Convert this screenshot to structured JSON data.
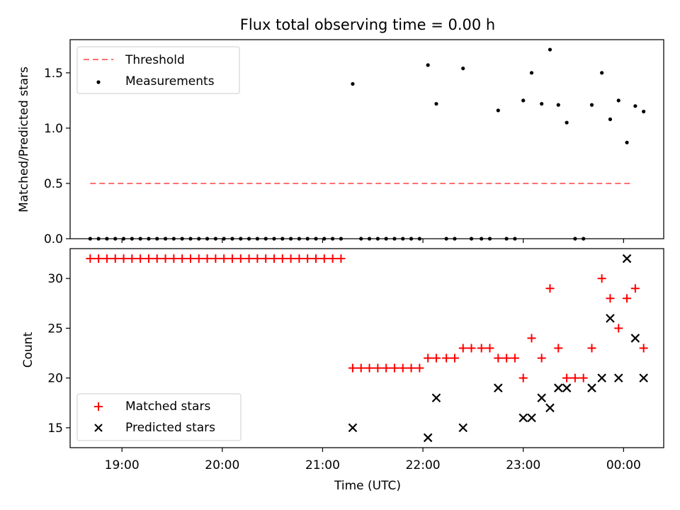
{
  "chart_data": [
    {
      "type": "scatter",
      "title": "Flux total observing time = 0.00 h",
      "xlabel": "",
      "ylabel": "Matched/Predicted stars",
      "ylim": [
        0,
        1.8
      ],
      "yticks": [
        "0.0",
        "0.5",
        "1.0",
        "1.5"
      ],
      "grid": false,
      "legend": "top-left",
      "threshold": {
        "name": "Threshold",
        "value": 0.5,
        "x_start": "18:41",
        "x_end": "00:05",
        "color": "#ff7070",
        "style": "dashed"
      },
      "series": [
        {
          "name": "Measurements",
          "color": "#000000",
          "marker": "dot",
          "points": [
            [
              "18:41",
              0.0
            ],
            [
              "18:46",
              0.0
            ],
            [
              "18:51",
              0.0
            ],
            [
              "18:56",
              0.0
            ],
            [
              "19:01",
              0.0
            ],
            [
              "19:06",
              0.0
            ],
            [
              "19:11",
              0.0
            ],
            [
              "19:16",
              0.0
            ],
            [
              "19:21",
              0.0
            ],
            [
              "19:26",
              0.0
            ],
            [
              "19:31",
              0.0
            ],
            [
              "19:36",
              0.0
            ],
            [
              "19:41",
              0.0
            ],
            [
              "19:46",
              0.0
            ],
            [
              "19:51",
              0.0
            ],
            [
              "19:56",
              0.0
            ],
            [
              "20:01",
              0.0
            ],
            [
              "20:06",
              0.0
            ],
            [
              "20:11",
              0.0
            ],
            [
              "20:16",
              0.0
            ],
            [
              "20:21",
              0.0
            ],
            [
              "20:26",
              0.0
            ],
            [
              "20:31",
              0.0
            ],
            [
              "20:36",
              0.0
            ],
            [
              "20:41",
              0.0
            ],
            [
              "20:46",
              0.0
            ],
            [
              "20:51",
              0.0
            ],
            [
              "20:56",
              0.0
            ],
            [
              "21:01",
              0.0
            ],
            [
              "21:06",
              0.0
            ],
            [
              "21:11",
              0.0
            ],
            [
              "21:18",
              1.4
            ],
            [
              "21:23",
              0.0
            ],
            [
              "21:28",
              0.0
            ],
            [
              "21:33",
              0.0
            ],
            [
              "21:38",
              0.0
            ],
            [
              "21:43",
              0.0
            ],
            [
              "21:48",
              0.0
            ],
            [
              "21:53",
              0.0
            ],
            [
              "21:58",
              0.0
            ],
            [
              "22:03",
              1.57
            ],
            [
              "22:08",
              1.22
            ],
            [
              "22:14",
              0.0
            ],
            [
              "22:19",
              0.0
            ],
            [
              "22:24",
              1.54
            ],
            [
              "22:29",
              0.0
            ],
            [
              "22:35",
              0.0
            ],
            [
              "22:40",
              0.0
            ],
            [
              "22:45",
              1.16
            ],
            [
              "22:50",
              0.0
            ],
            [
              "22:55",
              0.0
            ],
            [
              "23:00",
              1.25
            ],
            [
              "23:05",
              1.5
            ],
            [
              "23:11",
              1.22
            ],
            [
              "23:16",
              1.71
            ],
            [
              "23:21",
              1.21
            ],
            [
              "23:26",
              1.05
            ],
            [
              "23:31",
              0.0
            ],
            [
              "23:36",
              0.0
            ],
            [
              "23:41",
              1.21
            ],
            [
              "23:47",
              1.5
            ],
            [
              "23:52",
              1.08
            ],
            [
              "23:57",
              1.25
            ],
            [
              "00:02",
              0.87
            ],
            [
              "00:07",
              1.2
            ],
            [
              "00:12",
              1.15
            ]
          ]
        }
      ]
    },
    {
      "type": "scatter",
      "title": "",
      "xlabel": "Time (UTC)",
      "ylabel": "Count",
      "ylim": [
        13.0,
        33.0
      ],
      "yticks": [
        "15",
        "20",
        "25",
        "30"
      ],
      "xticks": [
        "19:00",
        "20:00",
        "21:00",
        "22:00",
        "23:00",
        "00:00"
      ],
      "grid": false,
      "legend": "bottom-left",
      "series": [
        {
          "name": "Matched stars",
          "color": "#ff0000",
          "marker": "plus",
          "points": [
            [
              "18:41",
              32
            ],
            [
              "18:46",
              32
            ],
            [
              "18:51",
              32
            ],
            [
              "18:56",
              32
            ],
            [
              "19:01",
              32
            ],
            [
              "19:06",
              32
            ],
            [
              "19:11",
              32
            ],
            [
              "19:16",
              32
            ],
            [
              "19:21",
              32
            ],
            [
              "19:26",
              32
            ],
            [
              "19:31",
              32
            ],
            [
              "19:36",
              32
            ],
            [
              "19:41",
              32
            ],
            [
              "19:46",
              32
            ],
            [
              "19:51",
              32
            ],
            [
              "19:56",
              32
            ],
            [
              "20:01",
              32
            ],
            [
              "20:06",
              32
            ],
            [
              "20:11",
              32
            ],
            [
              "20:16",
              32
            ],
            [
              "20:21",
              32
            ],
            [
              "20:26",
              32
            ],
            [
              "20:31",
              32
            ],
            [
              "20:36",
              32
            ],
            [
              "20:41",
              32
            ],
            [
              "20:46",
              32
            ],
            [
              "20:51",
              32
            ],
            [
              "20:56",
              32
            ],
            [
              "21:01",
              32
            ],
            [
              "21:06",
              32
            ],
            [
              "21:11",
              32
            ],
            [
              "21:18",
              21
            ],
            [
              "21:23",
              21
            ],
            [
              "21:28",
              21
            ],
            [
              "21:33",
              21
            ],
            [
              "21:38",
              21
            ],
            [
              "21:43",
              21
            ],
            [
              "21:48",
              21
            ],
            [
              "21:53",
              21
            ],
            [
              "21:58",
              21
            ],
            [
              "22:03",
              22
            ],
            [
              "22:08",
              22
            ],
            [
              "22:14",
              22
            ],
            [
              "22:19",
              22
            ],
            [
              "22:24",
              23
            ],
            [
              "22:29",
              23
            ],
            [
              "22:35",
              23
            ],
            [
              "22:40",
              23
            ],
            [
              "22:45",
              22
            ],
            [
              "22:50",
              22
            ],
            [
              "22:55",
              22
            ],
            [
              "23:00",
              20
            ],
            [
              "23:05",
              24
            ],
            [
              "23:11",
              22
            ],
            [
              "23:16",
              29
            ],
            [
              "23:21",
              23
            ],
            [
              "23:26",
              20
            ],
            [
              "23:31",
              20
            ],
            [
              "23:36",
              20
            ],
            [
              "23:41",
              23
            ],
            [
              "23:47",
              30
            ],
            [
              "23:52",
              28
            ],
            [
              "23:57",
              25
            ],
            [
              "00:02",
              28
            ],
            [
              "00:07",
              29
            ],
            [
              "00:12",
              23
            ]
          ]
        },
        {
          "name": "Predicted stars",
          "color": "#000000",
          "marker": "x",
          "points": [
            [
              "21:18",
              15
            ],
            [
              "22:03",
              14
            ],
            [
              "22:08",
              18
            ],
            [
              "22:24",
              15
            ],
            [
              "22:45",
              19
            ],
            [
              "23:00",
              16
            ],
            [
              "23:05",
              16
            ],
            [
              "23:11",
              18
            ],
            [
              "23:16",
              17
            ],
            [
              "23:21",
              19
            ],
            [
              "23:26",
              19
            ],
            [
              "23:41",
              19
            ],
            [
              "23:47",
              20
            ],
            [
              "23:52",
              26
            ],
            [
              "23:57",
              20
            ],
            [
              "00:02",
              32
            ],
            [
              "00:07",
              24
            ],
            [
              "00:12",
              20
            ]
          ]
        }
      ]
    }
  ]
}
